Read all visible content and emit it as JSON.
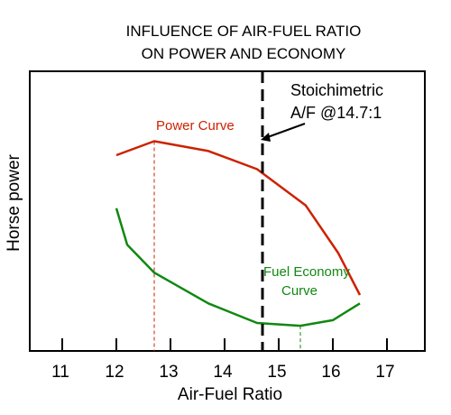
{
  "chart_data": {
    "type": "line",
    "title": [
      "INFLUENCE OF AIR-FUEL RATIO",
      "ON POWER AND ECONOMY"
    ],
    "xlabel": "Air-Fuel Ratio",
    "ylabel": "Horse power",
    "xlim": [
      10.4,
      17.7
    ],
    "ylim": [
      0,
      100
    ],
    "xticks": [
      11,
      12,
      13,
      14,
      15,
      16,
      17
    ],
    "grid": false,
    "series": [
      {
        "name": "Power Curve",
        "color": "#cc2200",
        "points": [
          [
            12.0,
            70
          ],
          [
            12.7,
            75
          ],
          [
            13.7,
            71.5
          ],
          [
            14.6,
            65
          ],
          [
            15.5,
            52
          ],
          [
            16.1,
            35
          ],
          [
            16.5,
            20
          ]
        ]
      },
      {
        "name": "Fuel Economy Curve",
        "color": "#118811",
        "points": [
          [
            12.0,
            51
          ],
          [
            12.2,
            38
          ],
          [
            12.7,
            28
          ],
          [
            13.7,
            17
          ],
          [
            14.6,
            10
          ],
          [
            15.4,
            9
          ],
          [
            16.0,
            11
          ],
          [
            16.5,
            17
          ]
        ]
      }
    ],
    "reference_line": {
      "x": 14.7,
      "label": [
        "Stoichimetric",
        "A/F @14.7:1"
      ]
    },
    "markers": [
      {
        "x": 12.7,
        "series": 0,
        "color": "#cc2200"
      },
      {
        "x": 15.4,
        "series": 1,
        "color": "#118811"
      }
    ],
    "annotations": {
      "power_label": "Power Curve",
      "economy_label": [
        "Fuel Economy",
        "Curve"
      ]
    }
  }
}
